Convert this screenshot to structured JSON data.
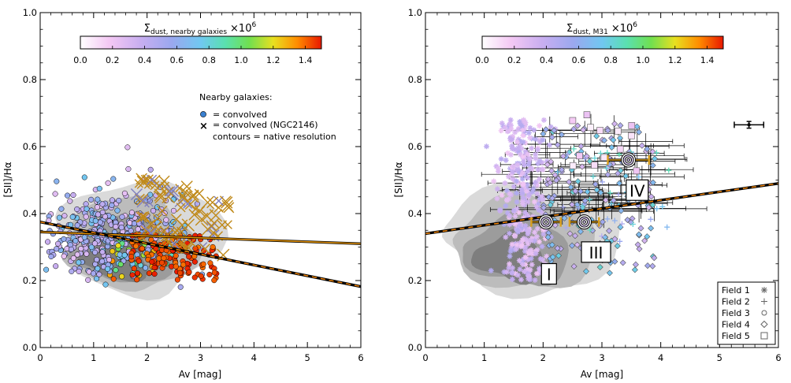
{
  "chart_data": [
    {
      "type": "scatter",
      "panel": "left",
      "xlabel": "Av [mag]",
      "ylabel": "[SII]/Hα",
      "xlim": [
        0,
        6
      ],
      "ylim": [
        0,
        1
      ],
      "x_ticks": [
        "0",
        "1",
        "2",
        "3",
        "4",
        "5",
        "6"
      ],
      "y_ticks": [
        "0.0",
        "0.2",
        "0.4",
        "0.6",
        "0.8",
        "1.0"
      ],
      "colorbar": {
        "title_main": "Σ",
        "title_sub": "dust, nearby galaxies",
        "title_scale": "×10",
        "title_exp": "6",
        "range": [
          0,
          1.5
        ],
        "ticks": [
          "0.0",
          "0.2",
          "0.4",
          "0.6",
          "0.8",
          "1.0",
          "1.2",
          "1.4"
        ]
      },
      "legend": {
        "heading": "Nearby galaxies:",
        "entries": [
          "= convolved",
          "= convolved (NGC2146)",
          "contours = native resolution"
        ]
      },
      "contours": [
        {
          "level": 1,
          "color": "#dadada",
          "center": [
            1.75,
            0.33
          ],
          "radius": [
            1.5,
            0.17
          ]
        },
        {
          "level": 2,
          "color": "#bcbcbc",
          "center": [
            1.6,
            0.31
          ],
          "radius": [
            1.2,
            0.14
          ]
        },
        {
          "level": 3,
          "color": "#9c9c9c",
          "center": [
            1.5,
            0.29
          ],
          "radius": [
            0.9,
            0.1
          ]
        },
        {
          "level": 4,
          "color": "#7e7e7e",
          "center": [
            1.4,
            0.27
          ],
          "radius": [
            0.6,
            0.07
          ]
        }
      ],
      "fit_lines": [
        {
          "name": "orange solid",
          "x": [
            0,
            6
          ],
          "y": [
            0.345,
            0.31
          ],
          "style": "solid",
          "color": "#e09000"
        },
        {
          "name": "black dashed",
          "x": [
            0,
            6
          ],
          "y": [
            0.375,
            0.182
          ],
          "style": "dashed",
          "color": "#ff8c00"
        }
      ],
      "points_summary": {
        "convolved_x_range": [
          0.1,
          3.4
        ],
        "convolved_y_range": [
          0.18,
          0.6
        ],
        "ngc2146_x_range": [
          1.8,
          3.6
        ],
        "ngc2146_y_range": [
          0.32,
          0.52
        ]
      }
    },
    {
      "type": "scatter",
      "panel": "right",
      "xlabel": "Av [mag]",
      "ylabel": "[SII]/Hα",
      "xlim": [
        0,
        6
      ],
      "ylim": [
        0,
        1
      ],
      "x_ticks": [
        "0",
        "1",
        "2",
        "3",
        "4",
        "5",
        "6"
      ],
      "y_ticks": [
        "0.0",
        "0.2",
        "0.4",
        "0.6",
        "0.8",
        "1.0"
      ],
      "colorbar": {
        "title_main": "Σ",
        "title_sub": "dust, M31",
        "title_scale": "×10",
        "title_exp": "6",
        "range": [
          0,
          1.5
        ],
        "ticks": [
          "0.0",
          "0.2",
          "0.4",
          "0.6",
          "0.8",
          "1.0",
          "1.2",
          "1.4"
        ]
      },
      "legend": {
        "entries": [
          {
            "label": "Field 1",
            "marker": "asterisk"
          },
          {
            "label": "Field 2",
            "marker": "plus"
          },
          {
            "label": "Field 3",
            "marker": "circle"
          },
          {
            "label": "Field 4",
            "marker": "diamond"
          },
          {
            "label": "Field 5",
            "marker": "square"
          }
        ]
      },
      "field_labels": [
        {
          "text": "I",
          "x": 2.1,
          "y": 0.22
        },
        {
          "text": "III",
          "x": 2.9,
          "y": 0.285
        },
        {
          "text": "IV",
          "x": 3.6,
          "y": 0.47
        }
      ],
      "bullseyes": [
        {
          "x": 2.05,
          "y": 0.375,
          "xerr": 0.25,
          "yerr": 0.0
        },
        {
          "x": 2.7,
          "y": 0.375,
          "xerr": 0.25,
          "yerr": 0.0
        },
        {
          "x": 3.45,
          "y": 0.56,
          "xerr": 0.35,
          "yerr": 0.0
        }
      ],
      "typical_error_bar": {
        "x": 5.5,
        "y": 0.665,
        "xerr": 0.25,
        "yerr": 0.01
      },
      "fit_lines": [
        {
          "name": "black dashed",
          "x": [
            0,
            6
          ],
          "y": [
            0.34,
            0.49
          ],
          "style": "dashed",
          "color": "#ff8c00"
        }
      ],
      "points_summary": {
        "x_range": [
          1.4,
          4.2
        ],
        "y_range": [
          0.2,
          0.7
        ]
      }
    }
  ]
}
